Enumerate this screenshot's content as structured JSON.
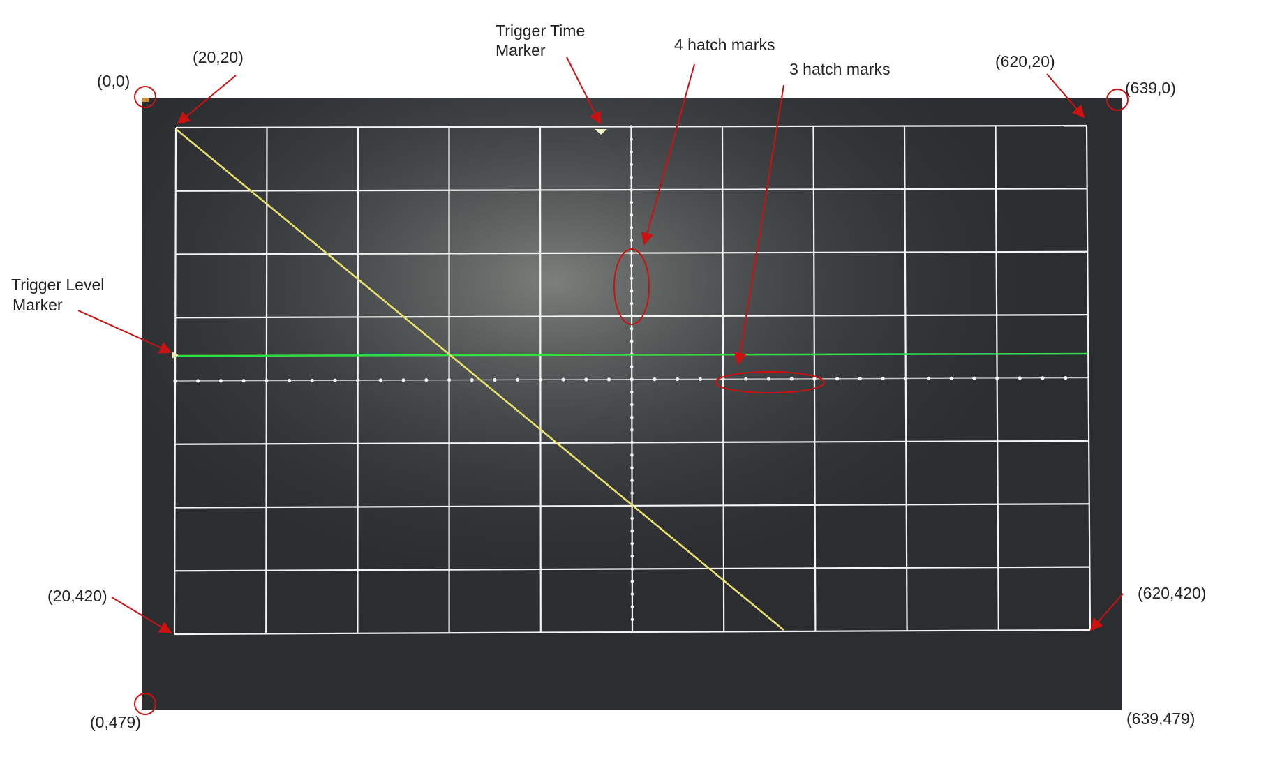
{
  "screen": {
    "background_color": "#2b2d30",
    "grid_color": "#f4f4f4",
    "trace_color": "#e8e06a",
    "trigger_level_color": "#33dd44",
    "annotation_color": "#cc1111"
  },
  "graticule": {
    "columns": 10,
    "rows": 8,
    "hatch_marks_per_major_division_vertical": 4,
    "hatch_marks_per_major_division_horizontal": 3
  },
  "annotations": {
    "trigger_time_marker": [
      "Trigger Time",
      "Marker"
    ],
    "trigger_level_marker": [
      "Trigger Level",
      "Marker"
    ],
    "four_hatch_marks": "4 hatch marks",
    "three_hatch_marks": "3 hatch marks",
    "corner_top_left_outer": "(0,0)",
    "corner_top_left_inner": "(20,20)",
    "corner_top_right_inner": "(620,20)",
    "corner_top_right_outer": "(639,0)",
    "corner_bottom_left_inner": "(20,420)",
    "corner_bottom_right_inner": "(620,420)",
    "corner_bottom_left_outer": "(0,479)",
    "corner_bottom_right_outer": "(639,479)"
  }
}
